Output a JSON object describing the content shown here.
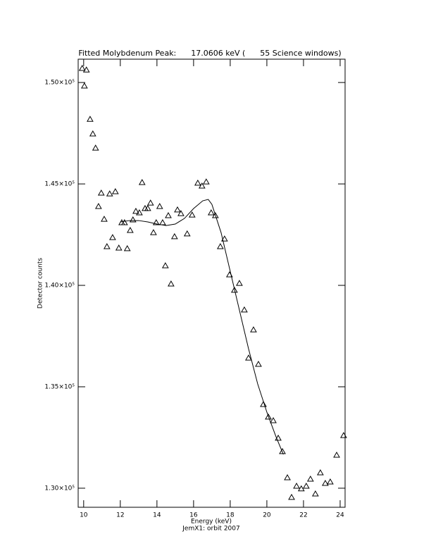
{
  "chart_data": {
    "type": "scatter",
    "title": "Fitted Molybdenum Peak:      17.0606 keV (      55 Science windows)",
    "xlabel": "Energy (keV)",
    "subtitle": "JemX1: orbit 2007",
    "ylabel": "Detector counts",
    "color": "#000000",
    "xlim": [
      9.7,
      24.27
    ],
    "ylim": [
      129060,
      151150
    ],
    "xticks": [
      10,
      12,
      14,
      16,
      18,
      20,
      22,
      24
    ],
    "yticks": [
      {
        "value": 130000,
        "label": "1.30×10⁵"
      },
      {
        "value": 135000,
        "label": "1.35×10⁵"
      },
      {
        "value": 140000,
        "label": "1.40×10⁵"
      },
      {
        "value": 145000,
        "label": "1.45×10⁵"
      },
      {
        "value": 150000,
        "label": "1.50×10⁵"
      }
    ],
    "series": [
      {
        "type": "scatter",
        "x": [
          9.92,
          10.04,
          10.15,
          10.35,
          10.5,
          10.65,
          10.81,
          10.96,
          11.12,
          11.27,
          11.42,
          11.58,
          11.73,
          11.92,
          12.08,
          12.23,
          12.38,
          12.54,
          12.69,
          12.85,
          13.04,
          13.19,
          13.35,
          13.5,
          13.65,
          13.81,
          13.96,
          14.15,
          14.31,
          14.46,
          14.62,
          14.77,
          14.96,
          15.12,
          15.31,
          15.65,
          15.92,
          16.23,
          16.46,
          16.69,
          16.96,
          17.19,
          17.46,
          17.69,
          17.96,
          18.23,
          18.5,
          18.77,
          19.0,
          19.27,
          19.54,
          19.81,
          20.08,
          20.35,
          20.62,
          20.85,
          21.12,
          21.35,
          21.62,
          21.88,
          22.15,
          22.38,
          22.65,
          22.92,
          23.19,
          23.46,
          23.81,
          24.19
        ],
        "values": [
          150700,
          149830,
          150620,
          148190,
          147470,
          146770,
          143890,
          144550,
          143260,
          141910,
          144510,
          142360,
          144620,
          141840,
          143090,
          143090,
          141810,
          142710,
          143230,
          143650,
          143580,
          145070,
          143790,
          143790,
          144060,
          142600,
          143090,
          143890,
          143090,
          140970,
          143440,
          140070,
          142400,
          143720,
          143540,
          142540,
          143470,
          145040,
          144900,
          145100,
          143580,
          143440,
          141910,
          142290,
          140520,
          139760,
          140100,
          138790,
          136420,
          137810,
          136110,
          134130,
          133510,
          133330,
          132470,
          131810,
          130520,
          129550,
          130100,
          129970,
          130100,
          130450,
          129720,
          130760,
          130240,
          130310,
          131630,
          132600
        ]
      },
      {
        "type": "line",
        "x": [
          12.0,
          12.5,
          13.0,
          13.5,
          14.0,
          14.5,
          15.0,
          15.5,
          16.0,
          16.5,
          16.8,
          17.0,
          17.5,
          18.0,
          18.5,
          19.0,
          19.5,
          20.0,
          20.5,
          20.9
        ],
        "values": [
          143125,
          143194,
          143194,
          143125,
          143021,
          142951,
          143021,
          143299,
          143785,
          144167,
          144236,
          143993,
          142604,
          140694,
          138785,
          136875,
          135139,
          133750,
          132535,
          131667
        ]
      }
    ]
  }
}
